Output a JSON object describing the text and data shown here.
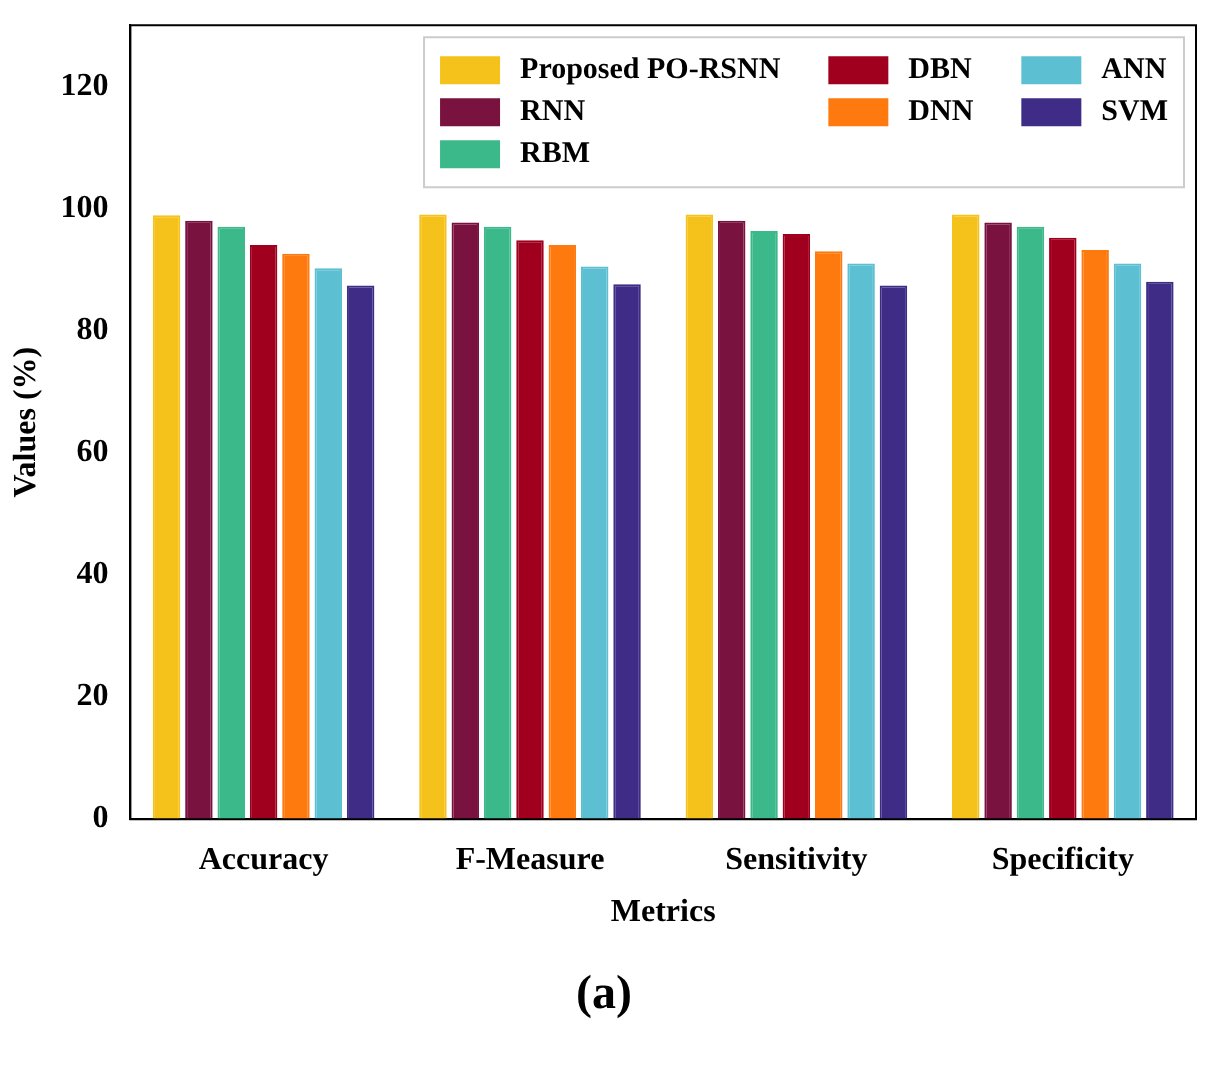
{
  "chart_data": {
    "type": "bar",
    "xlabel": "Metrics",
    "ylabel": "Values (%)",
    "annotations": [
      "(a)"
    ],
    "categories": [
      "Accuracy",
      "F-Measure",
      "Sensitivity",
      "Specificity"
    ],
    "series": [
      {
        "name": "Proposed PO-RSNN",
        "color": "#f5c21b",
        "values": [
          98.9,
          99,
          99,
          99
        ]
      },
      {
        "name": "RNN",
        "color": "#7a1240",
        "values": [
          98,
          97.7,
          98,
          97.7
        ]
      },
      {
        "name": "RBM",
        "color": "#3cb98a",
        "values": [
          97,
          97,
          96.3,
          97
        ]
      },
      {
        "name": "DBN",
        "color": "#a0001e",
        "values": [
          94,
          94.8,
          95.8,
          95.2
        ]
      },
      {
        "name": "DNN",
        "color": "#ff7a0e",
        "values": [
          92.6,
          94,
          93,
          93.2
        ]
      },
      {
        "name": "ANN",
        "color": "#5cc0d2",
        "values": [
          90.2,
          90.5,
          91,
          91
        ]
      },
      {
        "name": "SVM",
        "color": "#3e2c86",
        "values": [
          87.4,
          87.6,
          87.4,
          88
        ]
      }
    ],
    "ylim": [
      0,
      130
    ],
    "yticks": [
      0,
      20,
      40,
      60,
      80,
      100,
      120
    ],
    "grid": false,
    "legend": "top right"
  }
}
